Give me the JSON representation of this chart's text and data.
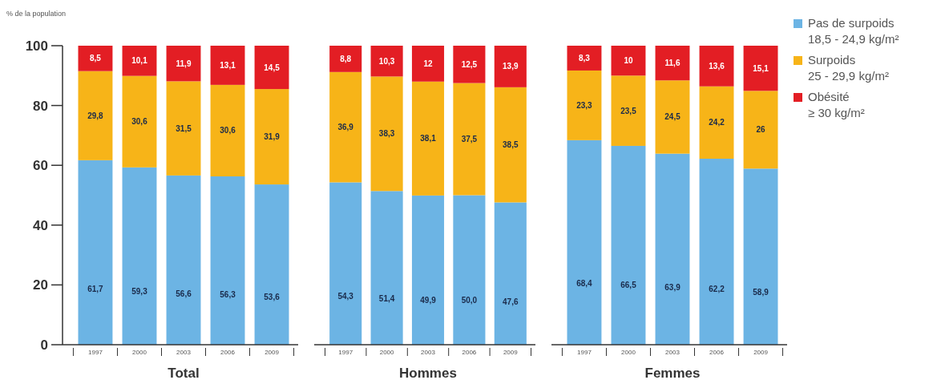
{
  "chart_data": [
    {
      "type": "bar",
      "stacked": true,
      "xlabel": "Total",
      "ylabel": "% de la population",
      "categories": [
        "1997",
        "2000",
        "2003",
        "2006",
        "2009"
      ],
      "ylim": [
        0,
        100
      ],
      "yticks": [
        0,
        20,
        40,
        60,
        80,
        100
      ],
      "legend": false,
      "series": [
        {
          "color": "#6cb4e4",
          "values": [
            61.7,
            59.3,
            56.6,
            56.3,
            53.6
          ],
          "value_labels": [
            "61,7",
            "59,3",
            "56,6",
            "56,3",
            "53,6"
          ]
        },
        {
          "color": "#f7b418",
          "values": [
            29.8,
            30.6,
            31.5,
            30.6,
            31.9
          ],
          "value_labels": [
            "29,8",
            "30,6",
            "31,5",
            "30,6",
            "31,9"
          ]
        },
        {
          "color": "#e31e24",
          "values": [
            8.5,
            10.1,
            11.9,
            13.1,
            14.5
          ],
          "value_labels": [
            "8,5",
            "10,1",
            "11,9",
            "13,1",
            "14,5"
          ]
        }
      ]
    },
    {
      "type": "bar",
      "stacked": true,
      "xlabel": "Hommes",
      "categories": [
        "1997",
        "2000",
        "2003",
        "2006",
        "2009"
      ],
      "ylim": [
        0,
        100
      ],
      "tick_labels": "x",
      "legend": false,
      "series": [
        {
          "color": "#6cb4e4",
          "values": [
            54.3,
            51.4,
            49.9,
            50.0,
            47.6
          ],
          "value_labels": [
            "54,3",
            "51,4",
            "49,9",
            "50,0",
            "47,6"
          ]
        },
        {
          "color": "#f7b418",
          "values": [
            36.9,
            38.3,
            38.1,
            37.5,
            38.5
          ],
          "value_labels": [
            "36,9",
            "38,3",
            "38,1",
            "37,5",
            "38,5"
          ]
        },
        {
          "color": "#e31e24",
          "values": [
            8.8,
            10.3,
            12,
            12.5,
            13.9
          ],
          "value_labels": [
            "8,8",
            "10,3",
            "12",
            "12,5",
            "13,9"
          ]
        }
      ]
    },
    {
      "type": "bar",
      "stacked": true,
      "xlabel": "Femmes",
      "categories": [
        "1997",
        "2000",
        "2003",
        "2006",
        "2009"
      ],
      "ylim": [
        0,
        100
      ],
      "tick_labels": "x",
      "legend": "right",
      "series": [
        {
          "name": "Pas de surpoids\n18,5 - 24,9 kg/m²",
          "color": "#6cb4e4",
          "values": [
            68.4,
            66.5,
            63.9,
            62.2,
            58.9
          ],
          "value_labels": [
            "68,4",
            "66,5",
            "63,9",
            "62,2",
            "58,9"
          ]
        },
        {
          "name": "Surpoids\n25 - 29,9 kg/m²",
          "color": "#f7b418",
          "values": [
            23.3,
            23.5,
            24.5,
            24.2,
            26
          ],
          "value_labels": [
            "23,3",
            "23,5",
            "24,5",
            "24,2",
            "26"
          ]
        },
        {
          "name": "Obésité\n≥ 30 kg/m²",
          "color": "#e31e24",
          "values": [
            8.3,
            10,
            11.6,
            13.6,
            15.1
          ],
          "value_labels": [
            "8,3",
            "10",
            "11,6",
            "13,6",
            "15,1"
          ]
        }
      ]
    }
  ]
}
